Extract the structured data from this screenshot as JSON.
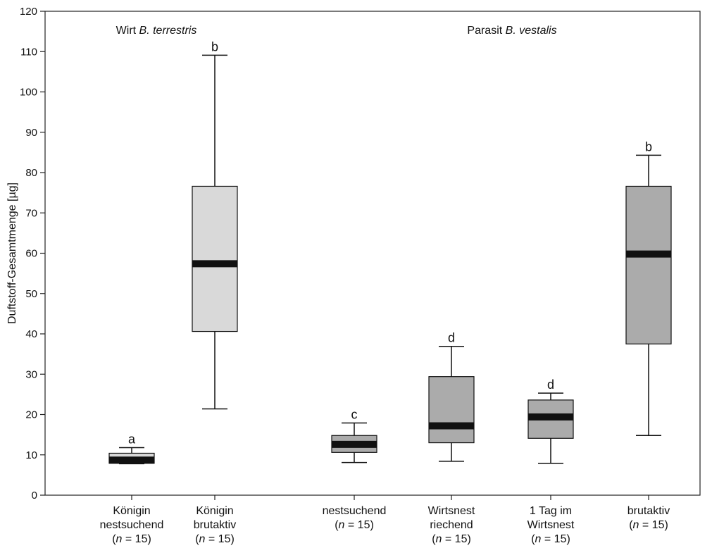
{
  "chart_data": {
    "type": "box",
    "ylabel": "Duftstoff-Gesamtmenge [µg]",
    "ylim": [
      0,
      120
    ],
    "yticks": [
      0,
      10,
      20,
      30,
      40,
      50,
      60,
      70,
      80,
      90,
      100,
      110,
      120
    ],
    "grid": false,
    "groups": [
      {
        "label_prefix": "Wirt ",
        "label_species": "B. terrestris"
      },
      {
        "label_prefix": "Parasit ",
        "label_species": "B. vestalis"
      }
    ],
    "boxes": [
      {
        "group": 0,
        "label_lines": [
          "Königin",
          "nestsuchend",
          "(n = 15)"
        ],
        "min": 7.8,
        "q1": 7.9,
        "median": 8.7,
        "q3": 10.4,
        "max": 11.8,
        "letter": "a",
        "color": "#d9d9d9"
      },
      {
        "group": 0,
        "label_lines": [
          "Königin",
          "brutaktiv",
          "(n = 15)"
        ],
        "min": 21.4,
        "q1": 40.6,
        "median": 57.4,
        "q3": 76.6,
        "max": 109.1,
        "letter": "b",
        "color": "#d9d9d9"
      },
      {
        "group": 1,
        "label_lines": [
          "nestsuchend",
          "(n = 15)"
        ],
        "min": 8.1,
        "q1": 10.6,
        "median": 12.6,
        "q3": 14.8,
        "max": 17.9,
        "letter": "c",
        "color": "#ababab"
      },
      {
        "group": 1,
        "label_lines": [
          "Wirtsnest",
          "riechend",
          "(n = 15)"
        ],
        "min": 8.4,
        "q1": 13.0,
        "median": 17.2,
        "q3": 29.4,
        "max": 36.9,
        "letter": "d",
        "color": "#ababab"
      },
      {
        "group": 1,
        "label_lines": [
          "1 Tag im",
          "Wirtsnest",
          "(n = 15)"
        ],
        "min": 7.9,
        "q1": 14.1,
        "median": 19.4,
        "q3": 23.6,
        "max": 25.3,
        "letter": "d",
        "color": "#ababab"
      },
      {
        "group": 1,
        "label_lines": [
          "brutaktiv",
          "(n = 15)"
        ],
        "min": 14.8,
        "q1": 37.5,
        "median": 59.8,
        "q3": 76.6,
        "max": 84.3,
        "letter": "b",
        "color": "#ababab"
      }
    ]
  }
}
